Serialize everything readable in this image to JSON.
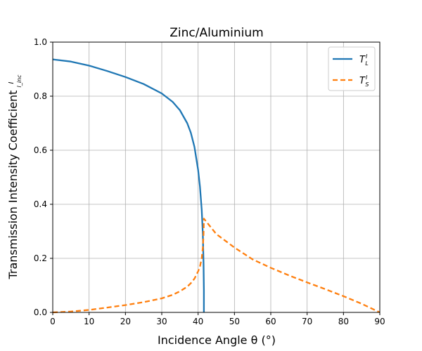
{
  "chart_data": {
    "type": "line",
    "title": "Zinc/Aluminium",
    "xlabel": "Incidence Angle θ (°)",
    "ylabel": "Transmission Intensity Coefficient",
    "ylabel_fraction": {
      "numerator": "I",
      "denominator": "I_inc"
    },
    "xlim": [
      0,
      90
    ],
    "ylim": [
      0,
      1.0
    ],
    "xticks": [
      0,
      10,
      20,
      30,
      40,
      50,
      60,
      70,
      80,
      90
    ],
    "yticks": [
      0.0,
      0.2,
      0.4,
      0.6,
      0.8,
      1.0
    ],
    "xtick_labels": [
      "0",
      "10",
      "20",
      "30",
      "40",
      "50",
      "60",
      "70",
      "80",
      "90"
    ],
    "ytick_labels": [
      "0.0",
      "0.2",
      "0.4",
      "0.6",
      "0.8",
      "1.0"
    ],
    "grid": true,
    "legend_position": "top-right",
    "series": [
      {
        "name": "T_L^I",
        "label_main": "T",
        "label_sub": "L",
        "label_sup": "I",
        "color": "#1f77b4",
        "style": "solid",
        "x": [
          0,
          5,
          10,
          15,
          20,
          25,
          30,
          33,
          35,
          37,
          38,
          39,
          40,
          40.5,
          41,
          41.3,
          41.5,
          41.6,
          41.6
        ],
        "y": [
          0.936,
          0.928,
          0.913,
          0.893,
          0.871,
          0.845,
          0.81,
          0.779,
          0.748,
          0.7,
          0.665,
          0.612,
          0.527,
          0.465,
          0.38,
          0.29,
          0.18,
          0.08,
          0.0
        ]
      },
      {
        "name": "T_S^I",
        "label_main": "T",
        "label_sub": "S",
        "label_sup": "I",
        "color": "#ff7f0e",
        "style": "dashed",
        "x": [
          0,
          5,
          10,
          15,
          20,
          25,
          30,
          33,
          35,
          37,
          38,
          39,
          40,
          40.5,
          41,
          41.3,
          41.5,
          41.6,
          42,
          45,
          50,
          55,
          60,
          65,
          70,
          75,
          80,
          85,
          90
        ],
        "y": [
          0.0,
          0.003,
          0.009,
          0.018,
          0.027,
          0.038,
          0.052,
          0.065,
          0.078,
          0.095,
          0.108,
          0.125,
          0.152,
          0.17,
          0.2,
          0.24,
          0.29,
          0.347,
          0.34,
          0.29,
          0.24,
          0.196,
          0.165,
          0.137,
          0.111,
          0.086,
          0.06,
          0.032,
          0.0
        ]
      }
    ]
  }
}
